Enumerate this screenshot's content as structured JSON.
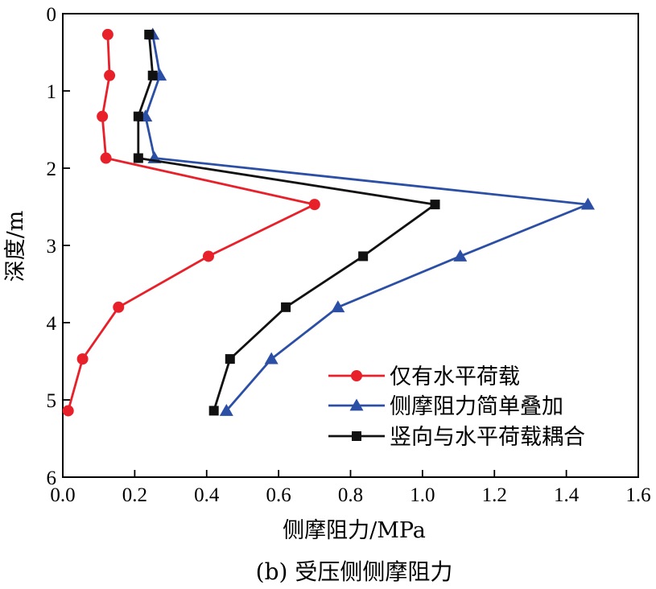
{
  "chart_data": {
    "type": "line",
    "caption": "(b) 受压侧侧摩阻力",
    "xlabel": "侧摩阻力/MPa",
    "ylabel": "深度/m",
    "xlim": [
      0,
      1.6
    ],
    "ylim": [
      0,
      6
    ],
    "y_inverted": true,
    "x_ticks": [
      0,
      0.2,
      0.4,
      0.6,
      0.8,
      1.0,
      1.2,
      1.4,
      1.6
    ],
    "x_tick_labels": [
      "0.0",
      "0.2",
      "0.4",
      "0.6",
      "0.8",
      "1.0",
      "1.2",
      "1.4",
      "1.6"
    ],
    "y_ticks": [
      0,
      1,
      2,
      3,
      4,
      5,
      6
    ],
    "y_tick_labels": [
      "0",
      "1",
      "2",
      "3",
      "4",
      "5",
      "6"
    ],
    "grid": false,
    "legend_position": "bottom-right",
    "series": [
      {
        "name": "仅有水平荷载",
        "color": "#e8202a",
        "marker": "circle",
        "x": [
          0.125,
          0.13,
          0.11,
          0.12,
          0.7,
          0.405,
          0.155,
          0.055,
          0.015
        ],
        "y": [
          0.27,
          0.8,
          1.33,
          1.87,
          2.47,
          3.14,
          3.8,
          4.47,
          5.14
        ]
      },
      {
        "name": "侧摩阻力简单叠加",
        "color": "#2c4fa6",
        "marker": "triangle",
        "x": [
          0.25,
          0.27,
          0.23,
          0.255,
          1.46,
          1.105,
          0.765,
          0.58,
          0.455
        ],
        "y": [
          0.27,
          0.8,
          1.33,
          1.87,
          2.47,
          3.14,
          3.8,
          4.47,
          5.14
        ]
      },
      {
        "name": "竖向与水平荷载耦合",
        "color": "#111111",
        "marker": "square",
        "x": [
          0.24,
          0.25,
          0.21,
          0.21,
          1.035,
          0.835,
          0.62,
          0.465,
          0.42
        ],
        "y": [
          0.27,
          0.8,
          1.33,
          1.87,
          2.47,
          3.14,
          3.8,
          4.47,
          5.14
        ]
      }
    ]
  }
}
